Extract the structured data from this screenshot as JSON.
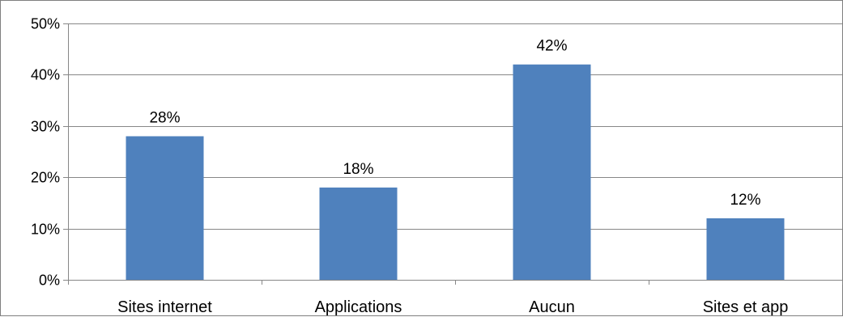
{
  "chart_data": {
    "type": "bar",
    "title": "",
    "xlabel": "",
    "ylabel": "",
    "categories": [
      "Sites internet",
      "Applications",
      "Aucun",
      "Sites et app"
    ],
    "values": [
      28,
      18,
      42,
      12
    ],
    "data_labels": [
      "28%",
      "18%",
      "42%",
      "12%"
    ],
    "ylim": [
      0,
      50
    ],
    "yticks": [
      0,
      10,
      20,
      30,
      40,
      50
    ],
    "ytick_labels": [
      "0%",
      "10%",
      "20%",
      "30%",
      "40%",
      "50%"
    ],
    "grid": true,
    "legend": "none",
    "colors": {
      "bar": "#4f81bd",
      "grid": "#878787",
      "axis": "#878787"
    }
  }
}
